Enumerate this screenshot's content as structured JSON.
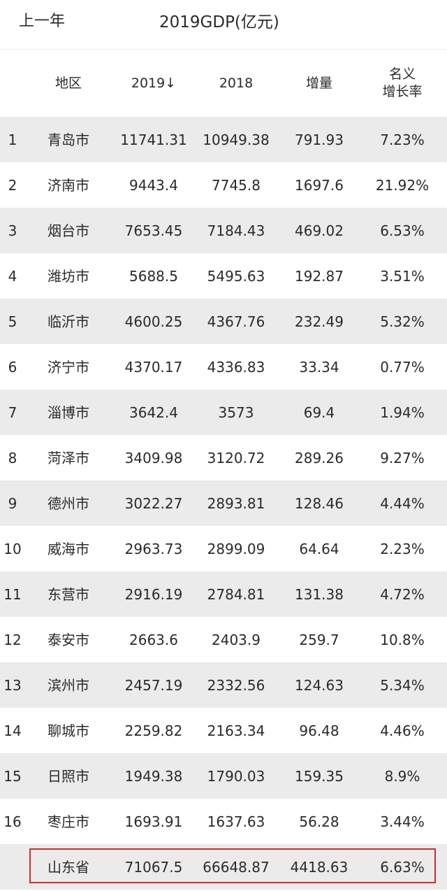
{
  "header": {
    "prev_year_label": "上一年",
    "title": "2019GDP(亿元)"
  },
  "columns": {
    "region": "地区",
    "y2019": "2019↓",
    "y2018": "2018",
    "increase": "增量",
    "rate_line1": "名义",
    "rate_line2": "增长率"
  },
  "rows": [
    {
      "rank": "1",
      "region": "青岛市",
      "y2019": "11741.31",
      "y2018": "10949.38",
      "increase": "791.93",
      "rate": "7.23%"
    },
    {
      "rank": "2",
      "region": "济南市",
      "y2019": "9443.4",
      "y2018": "7745.8",
      "increase": "1697.6",
      "rate": "21.92%"
    },
    {
      "rank": "3",
      "region": "烟台市",
      "y2019": "7653.45",
      "y2018": "7184.43",
      "increase": "469.02",
      "rate": "6.53%"
    },
    {
      "rank": "4",
      "region": "潍坊市",
      "y2019": "5688.5",
      "y2018": "5495.63",
      "increase": "192.87",
      "rate": "3.51%"
    },
    {
      "rank": "5",
      "region": "临沂市",
      "y2019": "4600.25",
      "y2018": "4367.76",
      "increase": "232.49",
      "rate": "5.32%"
    },
    {
      "rank": "6",
      "region": "济宁市",
      "y2019": "4370.17",
      "y2018": "4336.83",
      "increase": "33.34",
      "rate": "0.77%"
    },
    {
      "rank": "7",
      "region": "淄博市",
      "y2019": "3642.4",
      "y2018": "3573",
      "increase": "69.4",
      "rate": "1.94%"
    },
    {
      "rank": "8",
      "region": "菏泽市",
      "y2019": "3409.98",
      "y2018": "3120.72",
      "increase": "289.26",
      "rate": "9.27%"
    },
    {
      "rank": "9",
      "region": "德州市",
      "y2019": "3022.27",
      "y2018": "2893.81",
      "increase": "128.46",
      "rate": "4.44%"
    },
    {
      "rank": "10",
      "region": "威海市",
      "y2019": "2963.73",
      "y2018": "2899.09",
      "increase": "64.64",
      "rate": "2.23%"
    },
    {
      "rank": "11",
      "region": "东营市",
      "y2019": "2916.19",
      "y2018": "2784.81",
      "increase": "131.38",
      "rate": "4.72%"
    },
    {
      "rank": "12",
      "region": "泰安市",
      "y2019": "2663.6",
      "y2018": "2403.9",
      "increase": "259.7",
      "rate": "10.8%"
    },
    {
      "rank": "13",
      "region": "滨州市",
      "y2019": "2457.19",
      "y2018": "2332.56",
      "increase": "124.63",
      "rate": "5.34%"
    },
    {
      "rank": "14",
      "region": "聊城市",
      "y2019": "2259.82",
      "y2018": "2163.34",
      "increase": "96.48",
      "rate": "4.46%"
    },
    {
      "rank": "15",
      "region": "日照市",
      "y2019": "1949.38",
      "y2018": "1790.03",
      "increase": "159.35",
      "rate": "8.9%"
    },
    {
      "rank": "16",
      "region": "枣庄市",
      "y2019": "1693.91",
      "y2018": "1637.63",
      "increase": "56.28",
      "rate": "3.44%"
    }
  ],
  "total": {
    "region": "山东省",
    "y2019": "71067.5",
    "y2018": "66648.87",
    "increase": "4418.63",
    "rate": "6.63%"
  },
  "colors": {
    "highlight_border": "#c9302c",
    "stripe": "#ebebeb"
  }
}
